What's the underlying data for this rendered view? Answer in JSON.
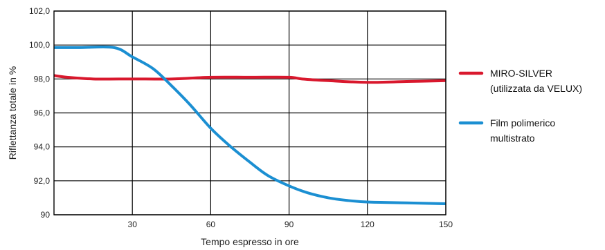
{
  "chart_data": {
    "type": "line",
    "title": "",
    "xlabel": "Tempo espresso in ore",
    "ylabel": "Riflettanza totale in %",
    "xlim": [
      0,
      150
    ],
    "ylim": [
      90,
      102
    ],
    "x_ticks": [
      {
        "value": 30,
        "label": "30"
      },
      {
        "value": 60,
        "label": "60"
      },
      {
        "value": 90,
        "label": "90"
      },
      {
        "value": 120,
        "label": "120"
      },
      {
        "value": 150,
        "label": "150"
      }
    ],
    "y_ticks": [
      {
        "value": 90,
        "label": "90"
      },
      {
        "value": 92,
        "label": "92,0"
      },
      {
        "value": 94,
        "label": "94,0"
      },
      {
        "value": 96,
        "label": "96,0"
      },
      {
        "value": 98,
        "label": "98,0"
      },
      {
        "value": 100,
        "label": "100,0"
      },
      {
        "value": 102,
        "label": "102,0"
      }
    ],
    "grid": true,
    "legend_position": "right",
    "series": [
      {
        "name": "MIRO-SILVER (utilizzata da VELUX)",
        "legend_lines": [
          "MIRO-SILVER",
          "(utilizzata da VELUX)"
        ],
        "color": "#d9182d",
        "points": [
          [
            0,
            98.2
          ],
          [
            5,
            98.1
          ],
          [
            15,
            98.0
          ],
          [
            30,
            98.0
          ],
          [
            45,
            98.0
          ],
          [
            60,
            98.1
          ],
          [
            75,
            98.1
          ],
          [
            90,
            98.1
          ],
          [
            95,
            98.0
          ],
          [
            105,
            97.9
          ],
          [
            120,
            97.8
          ],
          [
            135,
            97.85
          ],
          [
            150,
            97.9
          ]
        ]
      },
      {
        "name": "Film polimerico multistrato",
        "legend_lines": [
          "Film polimerico",
          "multistrato"
        ],
        "color": "#1b8fd2",
        "points": [
          [
            0,
            99.85
          ],
          [
            10,
            99.85
          ],
          [
            23,
            99.85
          ],
          [
            30,
            99.3
          ],
          [
            38,
            98.6
          ],
          [
            45,
            97.6
          ],
          [
            52,
            96.5
          ],
          [
            60,
            95.1
          ],
          [
            67,
            94.1
          ],
          [
            75,
            93.1
          ],
          [
            82,
            92.3
          ],
          [
            90,
            91.7
          ],
          [
            97,
            91.3
          ],
          [
            105,
            91.0
          ],
          [
            112,
            90.85
          ],
          [
            120,
            90.75
          ],
          [
            135,
            90.7
          ],
          [
            150,
            90.65
          ]
        ]
      }
    ]
  }
}
